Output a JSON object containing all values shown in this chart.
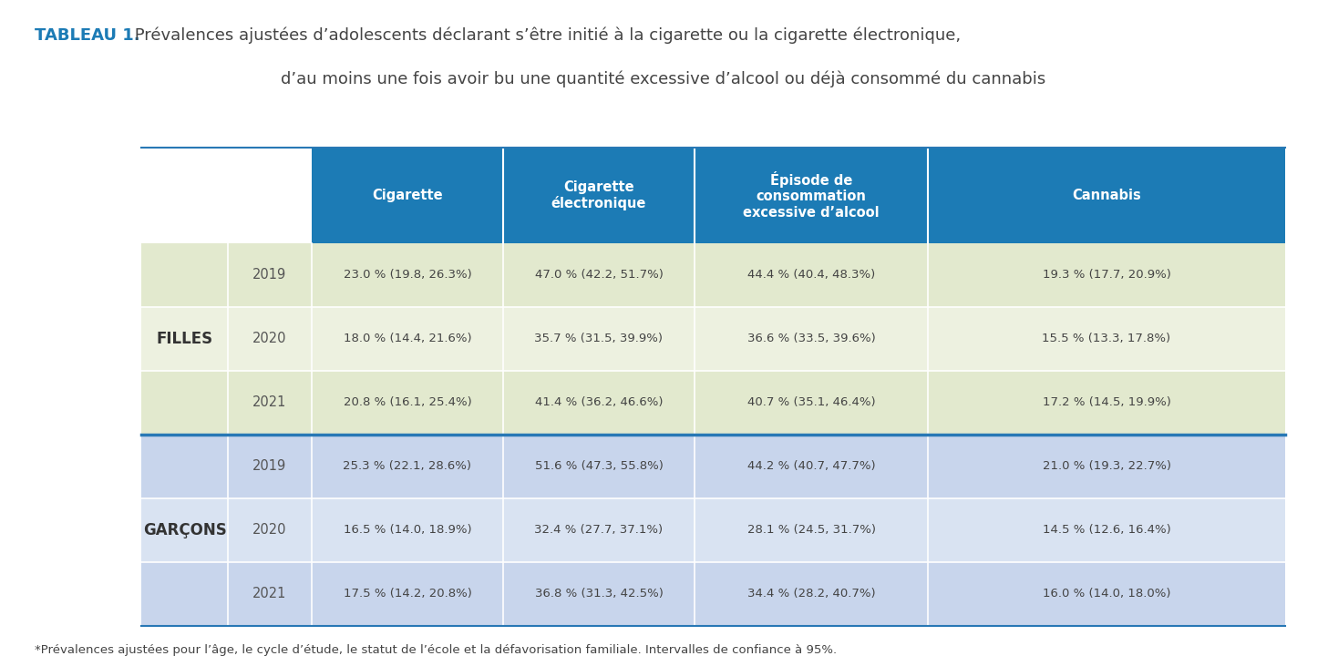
{
  "title_bold": "TABLEAU 1.",
  "title_normal": " Prévalences ajustées d’adolescents déclarant s’être initié à la cigarette ou la cigarette électronique,",
  "title_line2": "d’au moins une fois avoir bu une quantité excessive d’alcool ou déjà consommé du cannabis",
  "footnote": "*Prévalences ajustées pour l’âge, le cycle d’étude, le statut de l’école et la défavorisation familiale. Intervalles de confiance à 95%.",
  "header_bg": "#1C7BB5",
  "header_text_color": "#FFFFFF",
  "filles_bg_dark": "#E2E9CE",
  "filles_bg_light": "#EDF1E0",
  "garcons_bg_dark": "#C8D5EC",
  "garcons_bg_light": "#D9E3F2",
  "group_label_filles_bg": "#E8EDDA",
  "group_label_garcons_bg": "#D2DEEE",
  "separator_color": "#2878B5",
  "col_headers": [
    "Cigarette",
    "Cigarette\nélectronique",
    "Épisode de\nconsommation\nexcessive d’alcool",
    "Cannabis"
  ],
  "years": [
    "2019",
    "2020",
    "2021"
  ],
  "filles_data_display": [
    [
      "23.0 % (19.8, 26.3%)",
      "47.0 % (42.2, 51.7%)",
      "44.4 % (40.4, 48.3%)",
      "19.3 % (17.7, 20.9%)"
    ],
    [
      "18.0 % (14.4, 21.6%)",
      "35.7 % (31.5, 39.9%)",
      "36.6 % (33.5, 39.6%)",
      "15.5 % (13.3, 17.8%)"
    ],
    [
      "20.8 % (16.1, 25.4%)",
      "41.4 % (36.2, 46.6%)",
      "40.7 % (35.1, 46.4%)",
      "17.2 % (14.5, 19.9%)"
    ]
  ],
  "garcons_data_display": [
    [
      "25.3 % (22.1, 28.6%)",
      "51.6 % (47.3, 55.8%)",
      "44.2 % (40.7, 47.7%)",
      "21.0 % (19.3, 22.7%)"
    ],
    [
      "16.5 % (14.0, 18.9%)",
      "32.4 % (27.7, 37.1%)",
      "28.1 % (24.5, 31.7%)",
      "14.5 % (12.6, 16.4%)"
    ],
    [
      "17.5 % (14.2, 20.8%)",
      "36.8 % (31.3, 42.5%)",
      "34.4 % (28.2, 40.7%)",
      "16.0 % (14.0, 18.0%)"
    ]
  ],
  "bg_color": "#FFFFFF",
  "text_color_data": "#444444",
  "text_color_year": "#555555",
  "text_color_group": "#333333",
  "title_color_bold": "#1C7BB5",
  "title_color_normal": "#444444",
  "footnote_color": "#444444"
}
